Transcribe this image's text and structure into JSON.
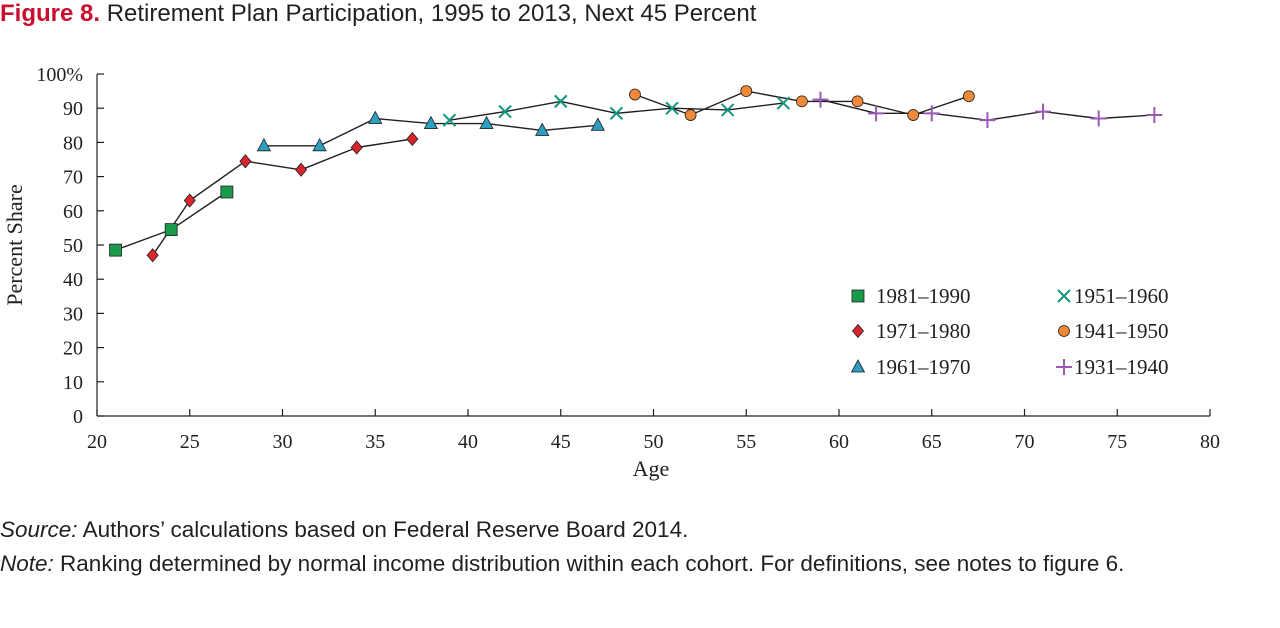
{
  "figure": {
    "label": "Figure 8.",
    "title": "Retirement Plan Participation, 1995 to 2013, Next 45 Percent"
  },
  "notes": {
    "source_label": "Source:",
    "source_text": "Authors’ calculations based on Federal Reserve Board 2014.",
    "note_label": "Note:",
    "note_text": "Ranking determined by normal income distribution within each cohort. For definitions, see notes to figure 6."
  },
  "chart_data": {
    "type": "line",
    "title": "Retirement Plan Participation, 1995 to 2013, Next 45 Percent",
    "xlabel": "Age",
    "ylabel": "Percent Share",
    "xlim": [
      20,
      80
    ],
    "ylim": [
      0,
      100
    ],
    "x_ticks": [
      20,
      25,
      30,
      35,
      40,
      45,
      50,
      55,
      60,
      65,
      70,
      75,
      80
    ],
    "y_ticks": [
      0,
      10,
      20,
      30,
      40,
      50,
      60,
      70,
      80,
      90,
      100
    ],
    "y_tick_labels": [
      "0",
      "10",
      "20",
      "30",
      "40",
      "50",
      "60",
      "70",
      "80",
      "90",
      "100%"
    ],
    "grid": false,
    "legend_position": "lower-right",
    "series": [
      {
        "name": "1981–1990",
        "marker": "square",
        "color": "#1a9a4b",
        "x": [
          21,
          24,
          27
        ],
        "y": [
          48.5,
          54.5,
          65.5
        ]
      },
      {
        "name": "1971–1980",
        "marker": "diamond",
        "color": "#d7262e",
        "x": [
          23,
          25,
          28,
          31,
          34,
          37
        ],
        "y": [
          47,
          63,
          74.5,
          72,
          78.5,
          81
        ]
      },
      {
        "name": "1961–1970",
        "marker": "triangle",
        "color": "#2b9fc0",
        "x": [
          29,
          32,
          35,
          38,
          41,
          44,
          47
        ],
        "y": [
          79,
          79,
          87,
          85.5,
          85.5,
          83.5,
          85
        ]
      },
      {
        "name": "1951–1960",
        "marker": "x",
        "color": "#12957f",
        "x": [
          39,
          42,
          45,
          48,
          51,
          54,
          57
        ],
        "y": [
          86.5,
          89,
          92,
          88.5,
          90,
          89.5,
          91.5
        ]
      },
      {
        "name": "1941–1950",
        "marker": "circle",
        "color": "#f08a3a",
        "x": [
          49,
          52,
          55,
          58,
          61,
          64,
          67
        ],
        "y": [
          94,
          88,
          95,
          92,
          92,
          88,
          93.5
        ]
      },
      {
        "name": "1931–1940",
        "marker": "plus",
        "color": "#9b59b6",
        "x": [
          59,
          62,
          65,
          68,
          71,
          74,
          77
        ],
        "y": [
          92.5,
          88.5,
          88.5,
          86.5,
          89,
          87,
          88
        ]
      }
    ]
  }
}
